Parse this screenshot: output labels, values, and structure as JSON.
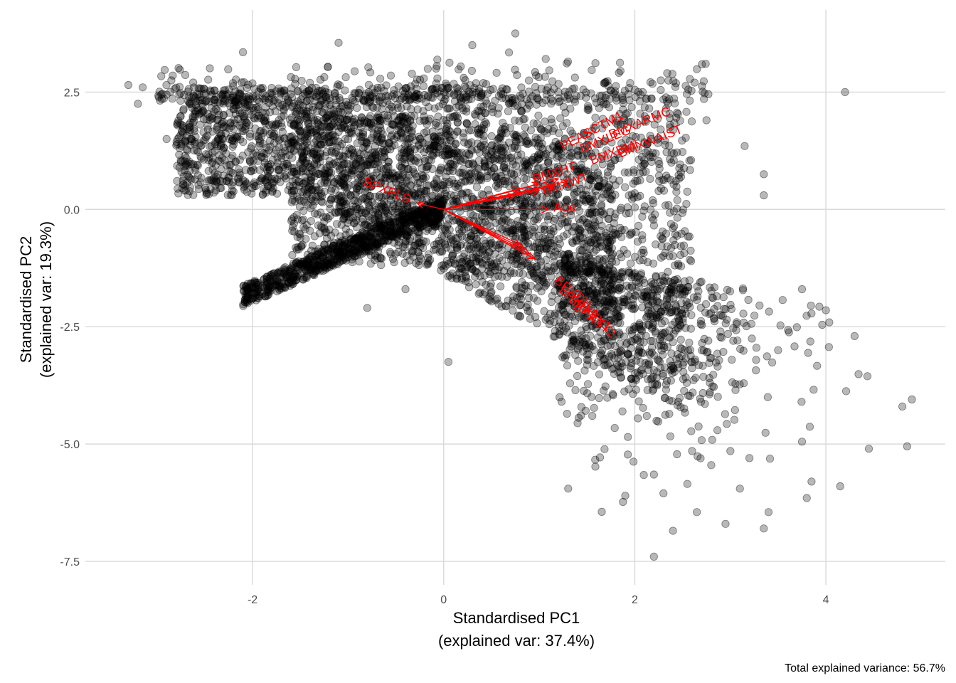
{
  "chart_data": {
    "type": "scatter",
    "title": "",
    "xlabel_lines": [
      "Standardised PC1",
      "(explained var: 37.4%)"
    ],
    "ylabel_lines": [
      "Standardised PC2",
      "(explained var: 19.3%)"
    ],
    "caption": "Total explained variance: 56.7%",
    "xlim": [
      -3.75,
      5.25
    ],
    "ylim": [
      -8.0,
      4.25
    ],
    "x_ticks": [
      -2,
      0,
      2,
      4
    ],
    "y_ticks": [
      -7.5,
      -5.0,
      -2.5,
      0.0,
      2.5
    ],
    "x_tick_labels": [
      "-2",
      "0",
      "2",
      "4"
    ],
    "y_tick_labels": [
      "-7.5",
      "-5.0",
      "-2.5",
      "0.0",
      "2.5"
    ],
    "grid": true,
    "point_color": "#000000",
    "arrow_color": "#ff0000",
    "outlier_points": [
      {
        "x": -3.3,
        "y": 2.65
      },
      {
        "x": -3.15,
        "y": 2.6
      },
      {
        "x": -3.2,
        "y": 2.25
      },
      {
        "x": -2.95,
        "y": 2.35
      },
      {
        "x": -2.9,
        "y": 1.5
      },
      {
        "x": -2.7,
        "y": 0.95
      },
      {
        "x": -2.1,
        "y": 3.35
      },
      {
        "x": -1.1,
        "y": 3.55
      },
      {
        "x": 0.3,
        "y": 3.5
      },
      {
        "x": 0.75,
        "y": 3.75
      },
      {
        "x": 1.3,
        "y": 3.15
      },
      {
        "x": 1.85,
        "y": 2.95
      },
      {
        "x": 4.2,
        "y": 2.5
      },
      {
        "x": 2.75,
        "y": 1.9
      },
      {
        "x": 3.15,
        "y": 1.35
      },
      {
        "x": 3.35,
        "y": 0.75
      },
      {
        "x": 3.35,
        "y": 0.3
      },
      {
        "x": -0.8,
        "y": -2.1
      },
      {
        "x": 0.05,
        "y": -3.25
      },
      {
        "x": -0.4,
        "y": -1.7
      },
      {
        "x": 3.75,
        "y": -1.7
      },
      {
        "x": 4.0,
        "y": -2.15
      },
      {
        "x": 4.3,
        "y": -2.7
      },
      {
        "x": 3.5,
        "y": -3.0
      },
      {
        "x": 3.75,
        "y": -4.95
      },
      {
        "x": 3.85,
        "y": -5.8
      },
      {
        "x": 4.15,
        "y": -5.9
      },
      {
        "x": 3.8,
        "y": -6.15
      },
      {
        "x": 4.45,
        "y": -5.1
      },
      {
        "x": 4.85,
        "y": -5.05
      },
      {
        "x": 4.8,
        "y": -4.2
      },
      {
        "x": 4.9,
        "y": -4.05
      },
      {
        "x": 3.4,
        "y": -6.45
      },
      {
        "x": 3.35,
        "y": -6.8
      },
      {
        "x": 2.95,
        "y": -6.7
      },
      {
        "x": 2.65,
        "y": -6.45
      },
      {
        "x": 2.4,
        "y": -6.85
      },
      {
        "x": 2.2,
        "y": -7.4
      },
      {
        "x": 2.3,
        "y": -6.05
      },
      {
        "x": 2.55,
        "y": -5.85
      },
      {
        "x": 3.1,
        "y": -5.95
      },
      {
        "x": 2.8,
        "y": -5.45
      },
      {
        "x": 2.2,
        "y": -5.65
      },
      {
        "x": 3.2,
        "y": -5.3
      },
      {
        "x": 3.0,
        "y": -5.15
      },
      {
        "x": 2.6,
        "y": -5.15
      }
    ],
    "arrows": [
      {
        "label": "Age",
        "x": 1.1,
        "y": 0.0
      },
      {
        "label": "BPXPLS",
        "x": -0.28,
        "y": 0.13
      },
      {
        "label": "PEASCTM1",
        "x": 1.0,
        "y": 0.55
      },
      {
        "label": "BMXARMC",
        "x": 1.2,
        "y": 0.65
      },
      {
        "label": "BMXWAIST",
        "x": 1.3,
        "y": 0.6
      },
      {
        "label": "BMXLEG",
        "x": 0.8,
        "y": 0.45
      },
      {
        "label": "BMXHT",
        "x": 0.75,
        "y": 0.3
      },
      {
        "label": "BMXBMI",
        "x": 1.15,
        "y": 0.5
      },
      {
        "label": "BMXWT",
        "x": 1.0,
        "y": 0.4
      },
      {
        "label": "BPXSY1",
        "x": 0.9,
        "y": -0.95
      },
      {
        "label": "BPXSY2",
        "x": 0.95,
        "y": -1.05
      },
      {
        "label": "BPXDI1",
        "x": 0.8,
        "y": -0.75
      },
      {
        "label": "BPXDI2",
        "x": 0.85,
        "y": -0.85
      }
    ],
    "arrow_label_positions": [
      {
        "label": "Age",
        "x": 1.15,
        "y": -0.05,
        "angle": 0
      },
      {
        "label": "BPXPLS",
        "x": -0.85,
        "y": 0.52,
        "angle": 22
      },
      {
        "label": "PEASCTM1",
        "x": 1.25,
        "y": 1.25,
        "angle": -28
      },
      {
        "label": "BMXARMC",
        "x": 1.75,
        "y": 1.5,
        "angle": -22
      },
      {
        "label": "BMXWAIST",
        "x": 1.85,
        "y": 1.1,
        "angle": -22
      },
      {
        "label": "BMXLEG",
        "x": 1.45,
        "y": 1.2,
        "angle": -22
      },
      {
        "label": "BMXHT",
        "x": 0.95,
        "y": 0.55,
        "angle": -18
      },
      {
        "label": "BMXBMI",
        "x": 1.55,
        "y": 0.95,
        "angle": -20
      },
      {
        "label": "BMXWT",
        "x": 1.05,
        "y": 0.3,
        "angle": -18
      },
      {
        "label": "BPXSY1",
        "x": 1.3,
        "y": -1.95,
        "angle": 38
      },
      {
        "label": "BPXSY2",
        "x": 1.35,
        "y": -2.1,
        "angle": 38
      },
      {
        "label": "BPXDI1",
        "x": 1.15,
        "y": -1.55,
        "angle": 38
      },
      {
        "label": "BPXDI2",
        "x": 1.2,
        "y": -1.75,
        "angle": 38
      }
    ]
  }
}
